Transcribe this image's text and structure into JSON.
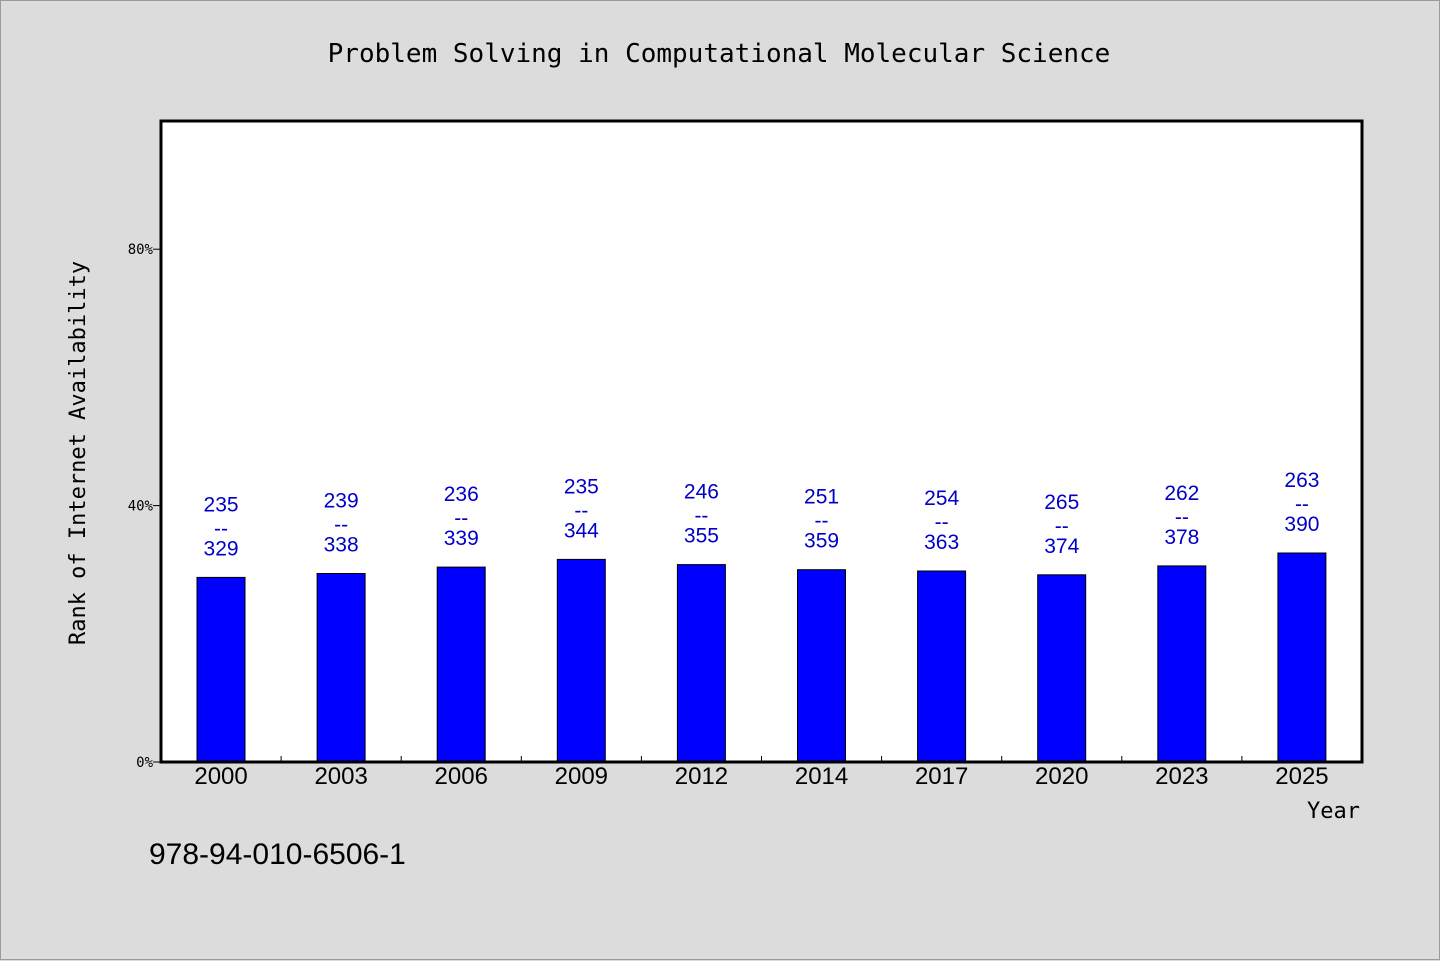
{
  "chart_data": {
    "type": "bar",
    "title": "Problem Solving in Computational Molecular Science",
    "xlabel": "Year",
    "ylabel": "Rank of Internet Availability",
    "ylim": [
      0,
      100
    ],
    "yticks": [
      {
        "value": 0,
        "label": "0%"
      },
      {
        "value": 40,
        "label": "40%"
      },
      {
        "value": 80,
        "label": "80%"
      }
    ],
    "categories": [
      "2000",
      "2003",
      "2006",
      "2009",
      "2012",
      "2014",
      "2017",
      "2020",
      "2023",
      "2025"
    ],
    "values": [
      28.8,
      29.4,
      30.4,
      31.6,
      30.8,
      30.0,
      29.8,
      29.2,
      30.6,
      32.6
    ],
    "bar_labels": [
      {
        "low": "235",
        "sep": "--",
        "high": "329"
      },
      {
        "low": "239",
        "sep": "--",
        "high": "338"
      },
      {
        "low": "236",
        "sep": "--",
        "high": "339"
      },
      {
        "low": "235",
        "sep": "--",
        "high": "344"
      },
      {
        "low": "246",
        "sep": "--",
        "high": "355"
      },
      {
        "low": "251",
        "sep": "--",
        "high": "359"
      },
      {
        "low": "254",
        "sep": "--",
        "high": "363"
      },
      {
        "low": "265",
        "sep": "--",
        "high": "374"
      },
      {
        "low": "262",
        "sep": "--",
        "high": "378"
      },
      {
        "low": "263",
        "sep": "--",
        "high": "390"
      }
    ],
    "bar_color": "#0000ff",
    "label_color": "#0000c8",
    "grid": false,
    "legend": "none"
  },
  "footer": {
    "isbn": "978-94-010-6506-1"
  }
}
